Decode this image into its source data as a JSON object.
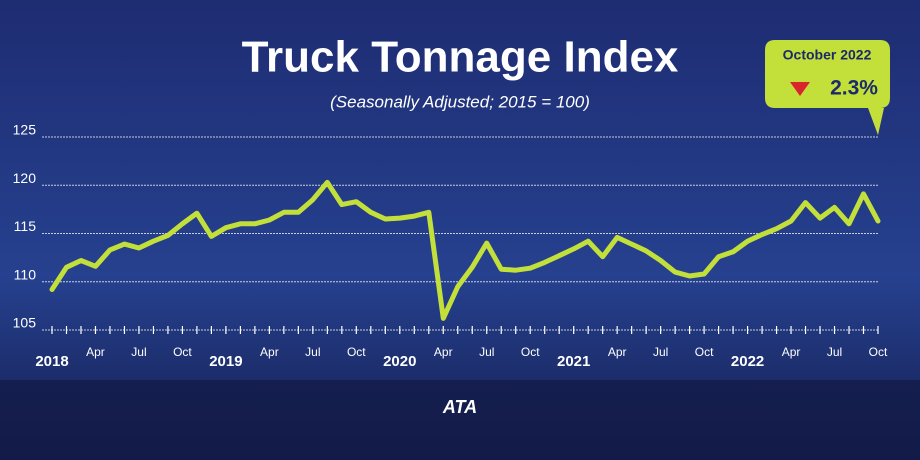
{
  "chart_data": {
    "type": "line",
    "title": "Truck Tonnage Index",
    "subtitle": "(Seasonally Adjusted; 2015 = 100)",
    "categories": [
      "2018",
      null,
      null,
      "Apr",
      null,
      null,
      "Jul",
      null,
      null,
      "Oct",
      null,
      null,
      "2019",
      null,
      null,
      "Apr",
      null,
      null,
      "Jul",
      null,
      null,
      "Oct",
      null,
      null,
      "2020",
      null,
      null,
      "Apr",
      null,
      null,
      "Jul",
      null,
      null,
      "Oct",
      null,
      null,
      "2021",
      null,
      null,
      "Apr",
      null,
      null,
      "Jul",
      null,
      null,
      "Oct",
      null,
      null,
      "2022",
      null,
      null,
      "Apr",
      null,
      null,
      "Jul",
      null,
      null,
      "Oct"
    ],
    "series": [
      {
        "name": "Truck Tonnage Index",
        "color": "#c3df3a",
        "values": [
          109.2,
          111.5,
          112.2,
          111.6,
          113.3,
          113.9,
          113.5,
          114.2,
          114.8,
          116.0,
          117.1,
          114.7,
          115.6,
          116.0,
          116.0,
          116.4,
          117.2,
          117.2,
          118.5,
          120.3,
          118.0,
          118.3,
          117.2,
          116.5,
          116.6,
          116.8,
          117.2,
          106.2,
          109.5,
          111.5,
          114.0,
          111.3,
          111.2,
          111.4,
          112.0,
          112.7,
          113.4,
          114.2,
          112.6,
          114.6,
          113.9,
          113.2,
          112.2,
          111.0,
          110.6,
          110.8,
          112.6,
          113.1,
          114.2,
          114.9,
          115.5,
          116.3,
          118.2,
          116.6,
          117.7,
          116.0,
          119.1,
          116.3
        ]
      }
    ],
    "ylim": [
      105,
      125
    ],
    "yticks": [
      105,
      110,
      115,
      120,
      125
    ],
    "grid": true,
    "annotation": {
      "label": "October 2022",
      "change": "2.3%"
    },
    "logo": "ATA"
  }
}
